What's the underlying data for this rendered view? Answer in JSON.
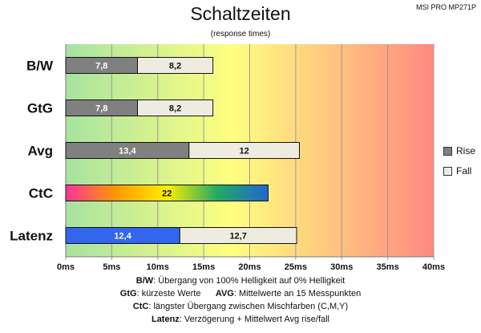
{
  "header": {
    "title": "Schaltzeiten",
    "subtitle": "(response times)",
    "model": "MSI PRO MP271P"
  },
  "colors": {
    "rise": "#808080",
    "fall": "#eeece1",
    "latenz_rise": "#3366ee",
    "ctc_gradient": [
      "#ff3399",
      "#ff9900",
      "#ffee00",
      "#22aa66",
      "#2266cc"
    ],
    "background_gradient": [
      "#a6e3a0",
      "#ffff80",
      "#ff8a80"
    ]
  },
  "legend": [
    {
      "name": "Rise",
      "color": "#808080"
    },
    {
      "name": "Fall",
      "color": "#eeece1"
    }
  ],
  "chart_data": {
    "type": "bar",
    "orientation": "horizontal",
    "stacked": true,
    "categories": [
      "B/W",
      "GtG",
      "Avg",
      "CtC",
      "Latenz"
    ],
    "series": [
      {
        "name": "Rise",
        "values": [
          7.8,
          7.8,
          13.4,
          22,
          12.4
        ],
        "labels": [
          "7,8",
          "7,8",
          "13,4",
          "22",
          "12,4"
        ]
      },
      {
        "name": "Fall",
        "values": [
          8.2,
          8.2,
          12,
          0,
          12.7
        ],
        "labels": [
          "8,2",
          "8,2",
          "12",
          "",
          "12,7"
        ]
      }
    ],
    "xlim": [
      0,
      40
    ],
    "xticks": [
      "0ms",
      "5ms",
      "10ms",
      "15ms",
      "20ms",
      "25ms",
      "30ms",
      "35ms",
      "40ms"
    ],
    "grid": true,
    "legend_position": "right"
  },
  "footnotes": {
    "line1": {
      "label": "B/W",
      "text": ":  Übergang von 100% Helligkeit auf 0% Helligkeit"
    },
    "line2a": {
      "label": "GtG",
      "text": ": kürzeste  Werte"
    },
    "line2b": {
      "label": "AVG",
      "text": ": Mittelwerte  an 15 Messpunkten"
    },
    "line3": {
      "label": "CtC",
      "text": ": längster Übergang  zwischen Mischfarben (C,M,Y)"
    },
    "line4": {
      "label": "Latenz",
      "text": ": Verzögerung  + Mittelwert Avg rise/fall"
    }
  }
}
